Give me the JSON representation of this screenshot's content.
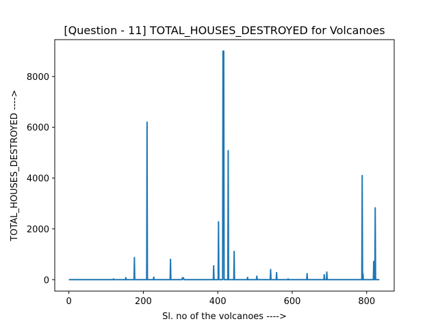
{
  "chart_data": {
    "type": "line",
    "title": "[Question - 11] TOTAL_HOUSES_DESTROYED for Volcanoes",
    "xlabel": "Sl. no of the volcanoes ---->",
    "ylabel": "TOTAL_HOUSES_DESTROYED ---->",
    "xlim": [
      -38,
      874
    ],
    "ylim": [
      -450,
      9450
    ],
    "xticks": [
      0,
      200,
      400,
      600,
      800
    ],
    "yticks": [
      0,
      2000,
      4000,
      6000,
      8000
    ],
    "grid": false,
    "legend": "none",
    "color": "#1f77b4",
    "series": [
      {
        "points": [
          [
            0,
            0
          ],
          [
            119,
            0
          ],
          [
            120,
            30
          ],
          [
            121,
            0
          ],
          [
            152,
            0
          ],
          [
            153,
            80
          ],
          [
            154,
            0
          ],
          [
            175,
            0
          ],
          [
            176,
            870
          ],
          [
            177,
            0
          ],
          [
            209,
            0
          ],
          [
            210,
            6200
          ],
          [
            211,
            0
          ],
          [
            227,
            0
          ],
          [
            228,
            100
          ],
          [
            229,
            0
          ],
          [
            272,
            0
          ],
          [
            273,
            800
          ],
          [
            274,
            0
          ],
          [
            304,
            0
          ],
          [
            305,
            80
          ],
          [
            307,
            40
          ],
          [
            308,
            70
          ],
          [
            309,
            0
          ],
          [
            388,
            0
          ],
          [
            389,
            550
          ],
          [
            390,
            0
          ],
          [
            401,
            0
          ],
          [
            402,
            2280
          ],
          [
            403,
            0
          ],
          [
            413,
            0
          ],
          [
            414,
            9000
          ],
          [
            416,
            9000
          ],
          [
            417,
            0
          ],
          [
            427,
            0
          ],
          [
            428,
            5080
          ],
          [
            429,
            0
          ],
          [
            443,
            0
          ],
          [
            444,
            1110
          ],
          [
            445,
            0
          ],
          [
            479,
            0
          ],
          [
            480,
            90
          ],
          [
            481,
            0
          ],
          [
            504,
            0
          ],
          [
            505,
            140
          ],
          [
            506,
            0
          ],
          [
            541,
            0
          ],
          [
            542,
            400
          ],
          [
            543,
            0
          ],
          [
            557,
            0
          ],
          [
            558,
            280
          ],
          [
            559,
            0
          ],
          [
            588,
            0
          ],
          [
            589,
            30
          ],
          [
            590,
            0
          ],
          [
            639,
            0
          ],
          [
            640,
            240
          ],
          [
            641,
            0
          ],
          [
            685,
            0
          ],
          [
            686,
            200
          ],
          [
            687,
            0
          ],
          [
            692,
            0
          ],
          [
            693,
            300
          ],
          [
            694,
            0
          ],
          [
            787,
            0
          ],
          [
            788,
            4100
          ],
          [
            789,
            0
          ],
          [
            790,
            240
          ],
          [
            791,
            0
          ],
          [
            818,
            0
          ],
          [
            819,
            720
          ],
          [
            820,
            0
          ],
          [
            822,
            0
          ],
          [
            823,
            2830
          ],
          [
            824,
            0
          ],
          [
            834,
            0
          ]
        ]
      }
    ]
  }
}
